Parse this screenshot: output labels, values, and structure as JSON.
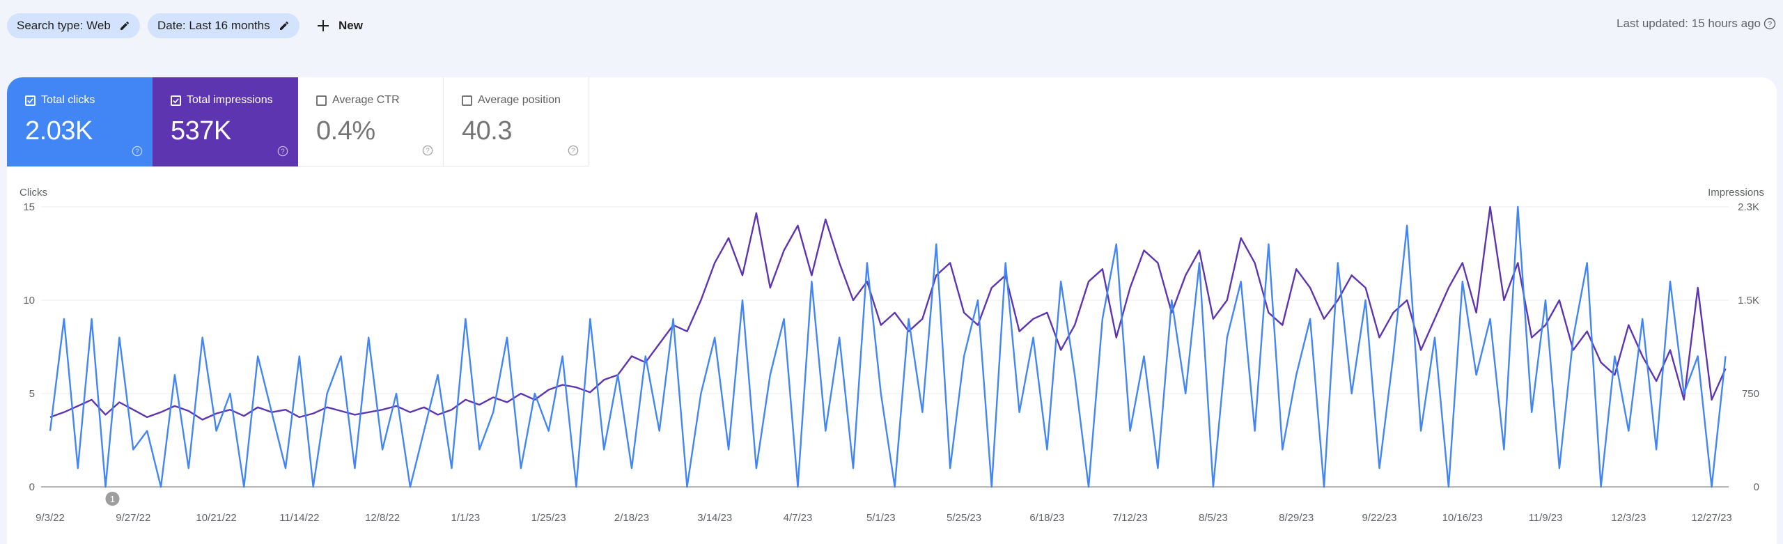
{
  "filters": {
    "search_type": "Search type: Web",
    "date": "Date: Last 16 months",
    "new_label": "New"
  },
  "last_updated": "Last updated: 15 hours ago",
  "cards": [
    {
      "label": "Total clicks",
      "value": "2.03K",
      "checked": true
    },
    {
      "label": "Total impressions",
      "value": "537K",
      "checked": true
    },
    {
      "label": "Average CTR",
      "value": "0.4%",
      "checked": false
    },
    {
      "label": "Average position",
      "value": "40.3",
      "checked": false
    }
  ],
  "colors": {
    "clicks": "#4285f4",
    "impressions": "#5e35b1"
  },
  "chart_data": {
    "type": "line",
    "left_axis_label": "Clicks",
    "right_axis_label": "Impressions",
    "left_ticks": [
      "0",
      "5",
      "10",
      "15"
    ],
    "right_ticks": [
      "0",
      "750",
      "1.5K",
      "2.3K"
    ],
    "left_ylim": [
      0,
      15
    ],
    "right_ylim": [
      0,
      2250
    ],
    "x_tick_labels": [
      "9/3/22",
      "9/27/22",
      "10/21/22",
      "11/14/22",
      "12/8/22",
      "1/1/23",
      "1/25/23",
      "2/18/23",
      "3/14/23",
      "4/7/23",
      "5/1/23",
      "5/25/23",
      "6/18/23",
      "7/12/23",
      "8/5/23",
      "8/29/23",
      "9/22/23",
      "10/16/23",
      "11/9/23",
      "12/3/23",
      "12/27/23"
    ],
    "x_tick_interval_days": 24,
    "sample_interval_days": 4,
    "annotation": "1",
    "annotation_day": 18,
    "series": [
      {
        "name": "Clicks",
        "axis": "left",
        "values": [
          3,
          9,
          1,
          9,
          0,
          8,
          2,
          3,
          0,
          6,
          1,
          8,
          3,
          5,
          0,
          7,
          4,
          1,
          7,
          0,
          5,
          7,
          1,
          8,
          2,
          5,
          0,
          3,
          6,
          1,
          9,
          2,
          4,
          8,
          1,
          5,
          3,
          7,
          0,
          9,
          2,
          6,
          1,
          7,
          3,
          9,
          0,
          5,
          8,
          2,
          10,
          1,
          6,
          9,
          0,
          11,
          3,
          8,
          1,
          12,
          5,
          0,
          9,
          4,
          13,
          1,
          7,
          10,
          0,
          12,
          4,
          8,
          2,
          11,
          6,
          0,
          9,
          13,
          3,
          7,
          1,
          10,
          5,
          12,
          0,
          8,
          11,
          3,
          13,
          2,
          6,
          9,
          0,
          12,
          5,
          10,
          1,
          7,
          14,
          3,
          8,
          0,
          11,
          6,
          9,
          2,
          15,
          4,
          10,
          1,
          8,
          12,
          0,
          7,
          3,
          9,
          2,
          11,
          5,
          7,
          0,
          7
        ]
      },
      {
        "name": "Impressions",
        "axis": "right",
        "values": [
          560,
          600,
          650,
          700,
          580,
          680,
          620,
          560,
          600,
          650,
          610,
          540,
          590,
          620,
          570,
          640,
          600,
          620,
          560,
          590,
          640,
          610,
          580,
          600,
          620,
          650,
          600,
          640,
          580,
          620,
          700,
          660,
          720,
          680,
          750,
          700,
          780,
          820,
          800,
          760,
          860,
          900,
          1050,
          1000,
          1150,
          1300,
          1250,
          1500,
          1800,
          2000,
          1700,
          2200,
          1600,
          1900,
          2100,
          1700,
          2150,
          1800,
          1500,
          1650,
          1300,
          1400,
          1250,
          1350,
          1700,
          1800,
          1400,
          1300,
          1600,
          1700,
          1250,
          1350,
          1400,
          1100,
          1300,
          1650,
          1750,
          1200,
          1600,
          1900,
          1800,
          1400,
          1700,
          1900,
          1350,
          1500,
          2000,
          1800,
          1400,
          1300,
          1750,
          1600,
          1350,
          1500,
          1700,
          1600,
          1200,
          1400,
          1500,
          1100,
          1350,
          1600,
          1800,
          1400,
          2250,
          1500,
          1800,
          1200,
          1300,
          1500,
          1100,
          1250,
          1000,
          900,
          1300,
          1050,
          850,
          1100,
          700,
          1600,
          700,
          950
        ]
      }
    ]
  }
}
